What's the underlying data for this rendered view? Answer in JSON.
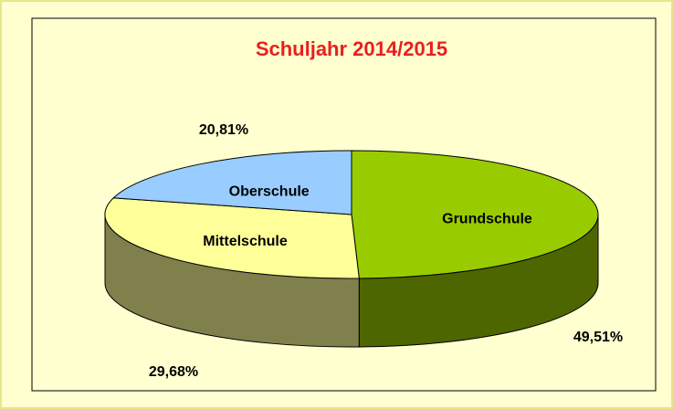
{
  "chart_data": {
    "type": "pie",
    "title": "Schuljahr 2014/2015",
    "categories": [
      "Grundschule",
      "Mittelschule",
      "Oberschule"
    ],
    "values": [
      49.51,
      29.68,
      20.81
    ],
    "value_labels": [
      "49,51%",
      "29,68%",
      "20,81%"
    ],
    "colors": [
      "#99cc00",
      "#ffff99",
      "#99ccff"
    ],
    "title_color": "#e8201e"
  }
}
